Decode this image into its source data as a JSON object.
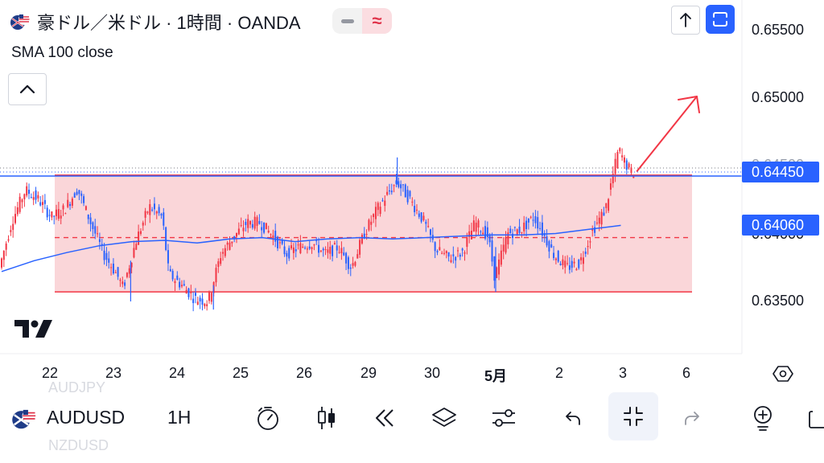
{
  "header": {
    "symbol_title": "豪ドル／米ドル · 1時間 · OANDA",
    "indicator_label": "SMA 100 close",
    "wave_glyph": "≈"
  },
  "toolbar": {
    "symbol": "AUDUSD",
    "interval": "1H",
    "watchlist_prev": "AUDJPY",
    "watchlist_next": "NZDUSD"
  },
  "icons": [
    "flag-au-us-icon",
    "collapse-chevron-up-icon",
    "arrow-up-icon",
    "fullscreen-icon",
    "settings-hexagon-icon",
    "bar-replay-timer-icon",
    "candles-icon",
    "rewind-icon",
    "layers-icon",
    "sliders-icon",
    "undo-icon",
    "collapse-arrows-icon",
    "redo-icon",
    "add-indicator-icon",
    "share-icon",
    "tradingview-logo-icon"
  ],
  "colors": {
    "up_candle": "#f23645",
    "down_candle": "#2962ff",
    "sma": "#2962ff",
    "range_box": "#f8c8cc",
    "range_border": "#f23645",
    "accent": "#2962ff"
  },
  "chart_data": {
    "type": "candlestick",
    "symbol": "豪ドル／米ドル",
    "interval": "1時間",
    "source": "OANDA",
    "x_ticks": [
      "22",
      "23",
      "24",
      "25",
      "26",
      "29",
      "30",
      "5月",
      "2",
      "3",
      "6"
    ],
    "y_ticks": [
      "0.65500",
      "0.65000",
      "0.64500",
      "0.64000",
      "0.63500"
    ],
    "ylim": [
      0.6327,
      0.6582
    ],
    "grid": false,
    "price_tags": {
      "last_price": "0.64450",
      "sma_value": "0.64060"
    },
    "range_box": {
      "top": 0.6443,
      "bottom": 0.6357,
      "middle_dashed": 0.6397
    },
    "sma_100": [
      {
        "x": 0,
        "y": 0.6372
      },
      {
        "x": 5,
        "y": 0.638
      },
      {
        "x": 10,
        "y": 0.6386
      },
      {
        "x": 15,
        "y": 0.6391
      },
      {
        "x": 20,
        "y": 0.6394
      },
      {
        "x": 25,
        "y": 0.6395
      },
      {
        "x": 30,
        "y": 0.6393
      },
      {
        "x": 35,
        "y": 0.6396
      },
      {
        "x": 40,
        "y": 0.6397
      },
      {
        "x": 45,
        "y": 0.6394
      },
      {
        "x": 50,
        "y": 0.6396
      },
      {
        "x": 55,
        "y": 0.6397
      },
      {
        "x": 60,
        "y": 0.6396
      },
      {
        "x": 65,
        "y": 0.6397
      },
      {
        "x": 70,
        "y": 0.6398
      },
      {
        "x": 75,
        "y": 0.6399
      },
      {
        "x": 80,
        "y": 0.6399
      },
      {
        "x": 85,
        "y": 0.64
      },
      {
        "x": 90,
        "y": 0.6403
      },
      {
        "x": 95,
        "y": 0.6406
      }
    ],
    "price_path": [
      {
        "x": 0,
        "y": 0.6375
      },
      {
        "x": 2,
        "y": 0.641
      },
      {
        "x": 4,
        "y": 0.6432
      },
      {
        "x": 6,
        "y": 0.6425
      },
      {
        "x": 8,
        "y": 0.6412
      },
      {
        "x": 10,
        "y": 0.6418
      },
      {
        "x": 12,
        "y": 0.6433
      },
      {
        "x": 14,
        "y": 0.6408
      },
      {
        "x": 16,
        "y": 0.6385
      },
      {
        "x": 18,
        "y": 0.637
      },
      {
        "x": 19,
        "y": 0.636
      },
      {
        "x": 21,
        "y": 0.6395
      },
      {
        "x": 23,
        "y": 0.642
      },
      {
        "x": 25,
        "y": 0.6412
      },
      {
        "x": 26,
        "y": 0.637
      },
      {
        "x": 28,
        "y": 0.6362
      },
      {
        "x": 30,
        "y": 0.6352
      },
      {
        "x": 32,
        "y": 0.635
      },
      {
        "x": 34,
        "y": 0.6385
      },
      {
        "x": 36,
        "y": 0.6398
      },
      {
        "x": 38,
        "y": 0.6408
      },
      {
        "x": 40,
        "y": 0.6408
      },
      {
        "x": 42,
        "y": 0.6398
      },
      {
        "x": 44,
        "y": 0.6385
      },
      {
        "x": 46,
        "y": 0.639
      },
      {
        "x": 48,
        "y": 0.6393
      },
      {
        "x": 50,
        "y": 0.6385
      },
      {
        "x": 52,
        "y": 0.639
      },
      {
        "x": 54,
        "y": 0.6375
      },
      {
        "x": 56,
        "y": 0.64
      },
      {
        "x": 58,
        "y": 0.6418
      },
      {
        "x": 60,
        "y": 0.6432
      },
      {
        "x": 61,
        "y": 0.6438
      },
      {
        "x": 63,
        "y": 0.6425
      },
      {
        "x": 65,
        "y": 0.641
      },
      {
        "x": 67,
        "y": 0.6388
      },
      {
        "x": 69,
        "y": 0.6382
      },
      {
        "x": 71,
        "y": 0.6386
      },
      {
        "x": 73,
        "y": 0.6408
      },
      {
        "x": 75,
        "y": 0.6398
      },
      {
        "x": 76,
        "y": 0.6368
      },
      {
        "x": 78,
        "y": 0.64
      },
      {
        "x": 80,
        "y": 0.6403
      },
      {
        "x": 82,
        "y": 0.6412
      },
      {
        "x": 83,
        "y": 0.6404
      },
      {
        "x": 85,
        "y": 0.6385
      },
      {
        "x": 87,
        "y": 0.6375
      },
      {
        "x": 89,
        "y": 0.6378
      },
      {
        "x": 91,
        "y": 0.6402
      },
      {
        "x": 93,
        "y": 0.6418
      },
      {
        "x": 94,
        "y": 0.644
      },
      {
        "x": 95,
        "y": 0.6462
      },
      {
        "x": 96,
        "y": 0.6452
      },
      {
        "x": 97,
        "y": 0.6445
      }
    ],
    "projection_arrow": [
      {
        "x": 97.5,
        "y": 0.6446
      },
      {
        "x": 104,
        "y": 0.65
      }
    ]
  }
}
